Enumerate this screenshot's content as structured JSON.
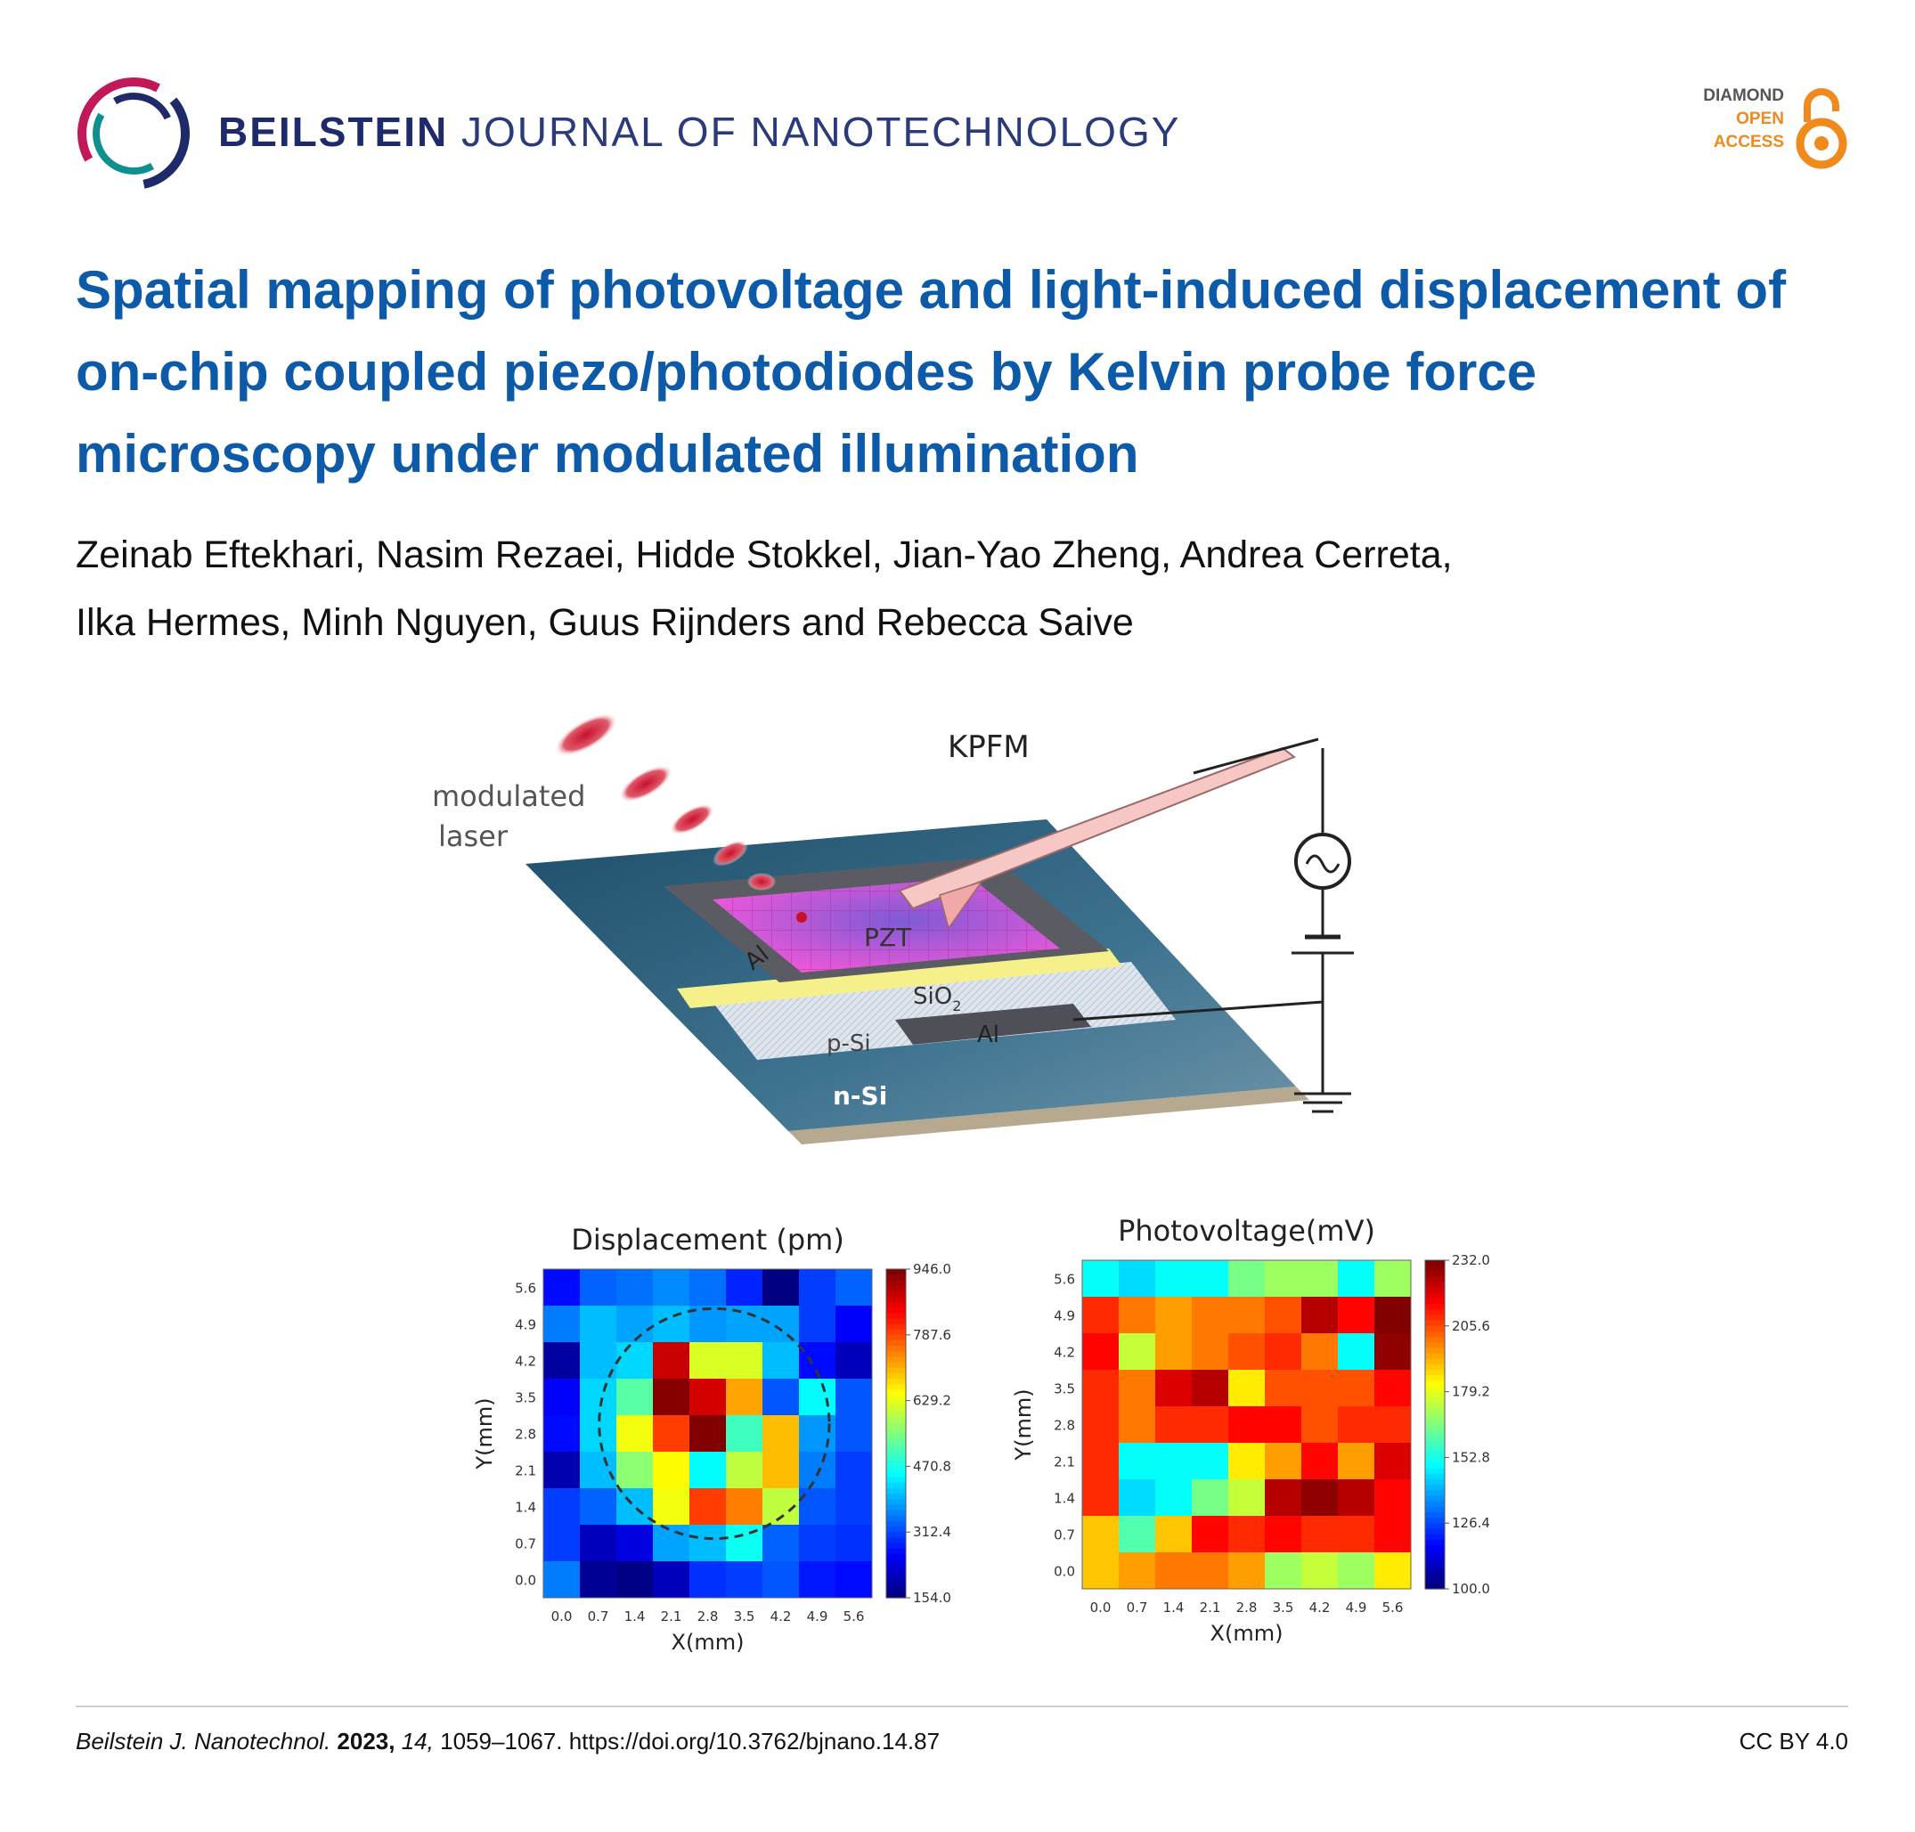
{
  "header": {
    "journal_bold": "BEILSTEIN",
    "journal_rest": "JOURNAL OF NANOTECHNOLOGY",
    "oa_line1": "DIAMOND",
    "oa_line2": "OPEN",
    "oa_line3": "ACCESS"
  },
  "article": {
    "title": "Spatial mapping of photovoltage and light-induced displacement of on-chip coupled piezo/photodiodes by Kelvin probe force microscopy under modulated illumination",
    "authors_line1": "Zeinab Eftekhari, Nasim Rezaei, Hidde Stokkel, Jian-Yao Zheng, Andrea Cerreta,",
    "authors_line2": "Ilka Hermes, Minh Nguyen, Guus Rijnders and Rebecca Saive"
  },
  "figure": {
    "schematic": {
      "kpfm": "KPFM",
      "laser_line1": "modulated",
      "laser_line2": "laser",
      "al_top": "Al",
      "pzt": "PZT",
      "sio2": "SiO",
      "sio2_sub": "2",
      "psi": "p-Si",
      "al_bottom": "Al",
      "nsi": "n-Si"
    }
  },
  "chart_data": [
    {
      "type": "heatmap",
      "title": "Displacement (pm)",
      "xlabel": "X(mm)",
      "ylabel": "Y(mm)",
      "x": [
        "0.0",
        "0.7",
        "1.4",
        "2.1",
        "2.8",
        "3.5",
        "4.2",
        "4.9",
        "5.6"
      ],
      "y": [
        "0.0",
        "0.7",
        "1.4",
        "2.1",
        "2.8",
        "3.5",
        "4.2",
        "4.9",
        "5.6"
      ],
      "colorbar_ticks": [
        "946.0",
        "787.6",
        "629.2",
        "470.8",
        "312.4",
        "154.0"
      ],
      "vmin": 154.0,
      "vmax": 946.0,
      "values": [
        [
          260,
          330,
          340,
          360,
          340,
          280,
          154,
          300,
          330
        ],
        [
          350,
          400,
          380,
          400,
          370,
          380,
          380,
          300,
          250
        ],
        [
          180,
          400,
          420,
          890,
          620,
          620,
          400,
          260,
          200
        ],
        [
          250,
          420,
          520,
          940,
          880,
          720,
          320,
          450,
          320
        ],
        [
          260,
          420,
          640,
          800,
          946,
          500,
          700,
          370,
          320
        ],
        [
          190,
          400,
          560,
          650,
          450,
          600,
          700,
          350,
          300
        ],
        [
          300,
          330,
          400,
          640,
          800,
          750,
          600,
          320,
          300
        ],
        [
          300,
          200,
          230,
          380,
          400,
          460,
          330,
          300,
          290
        ],
        [
          350,
          170,
          160,
          200,
          290,
          300,
          320,
          270,
          260
        ]
      ]
    },
    {
      "type": "heatmap",
      "title": "Photovoltage(mV)",
      "xlabel": "X(mm)",
      "ylabel": "Y(mm)",
      "x": [
        "0.0",
        "0.7",
        "1.4",
        "2.1",
        "2.8",
        "3.5",
        "4.2",
        "4.9",
        "5.6"
      ],
      "y": [
        "0.0",
        "0.7",
        "1.4",
        "2.1",
        "2.8",
        "3.5",
        "4.2",
        "4.9",
        "5.6"
      ],
      "colorbar_ticks": [
        "232.0",
        "205.6",
        "179.2",
        "152.8",
        "126.4",
        "100.0"
      ],
      "vmin": 100.0,
      "vmax": 232.0,
      "values": [
        [
          150,
          145,
          150,
          150,
          165,
          170,
          170,
          150,
          170
        ],
        [
          210,
          200,
          195,
          200,
          200,
          205,
          225,
          215,
          232
        ],
        [
          215,
          175,
          195,
          200,
          205,
          210,
          200,
          150,
          230
        ],
        [
          210,
          200,
          220,
          225,
          185,
          205,
          205,
          205,
          215
        ],
        [
          210,
          200,
          210,
          210,
          215,
          215,
          205,
          210,
          210
        ],
        [
          210,
          150,
          150,
          150,
          185,
          195,
          215,
          195,
          220
        ],
        [
          210,
          145,
          150,
          165,
          175,
          225,
          230,
          225,
          215
        ],
        [
          190,
          160,
          190,
          215,
          210,
          215,
          210,
          210,
          215
        ],
        [
          190,
          195,
          200,
          200,
          195,
          170,
          175,
          170,
          185
        ]
      ]
    }
  ],
  "footer": {
    "journal_abbrev": "Beilstein J. Nanotechnol.",
    "year": "2023,",
    "volume": "14,",
    "pages": "1059–1067.",
    "doi": "https://doi.org/10.3762/bjnano.14.87",
    "license": "CC BY 4.0"
  },
  "colors": {
    "title_blue": "#0d5aa8",
    "journal_navy": "#1f2a6b",
    "oa_orange": "#f08a1c"
  }
}
